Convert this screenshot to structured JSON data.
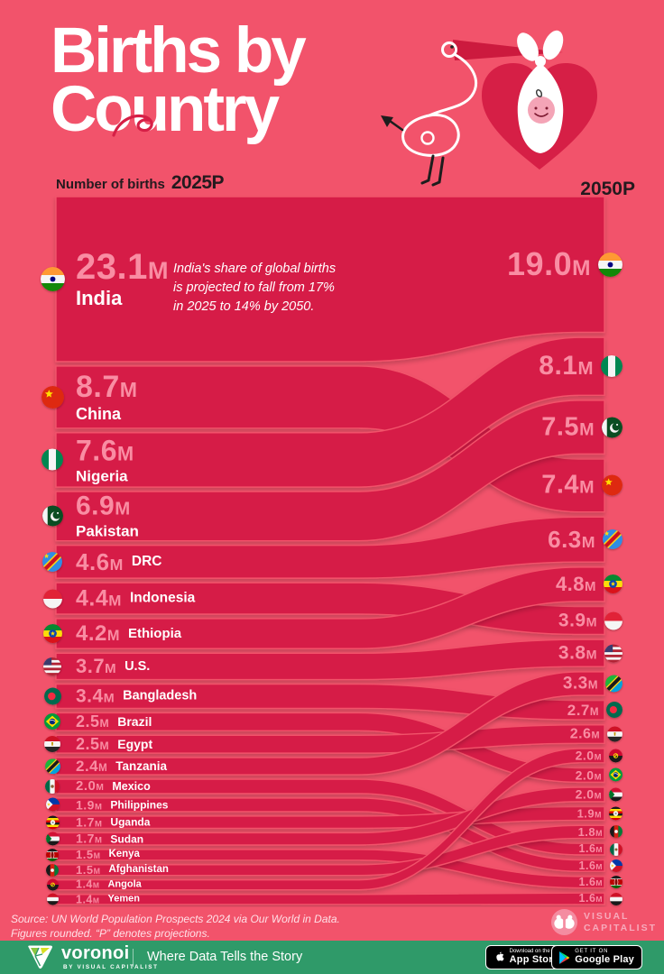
{
  "header": {
    "title_line1": "Births by",
    "title_line2": "Country"
  },
  "axis": {
    "left_label": "Number of births",
    "left_year": "2025P",
    "right_year": "2050P"
  },
  "annotation": {
    "line1": "India's share of global births",
    "line2": "is projected to fall from 17%",
    "line3": "in 2025 to 14% by 2050."
  },
  "chart_data": {
    "type": "area",
    "subtype": "sankey-alluvial",
    "title": "Births by Country",
    "unit": "millions of births",
    "columns": [
      "2025P",
      "2050P"
    ],
    "countries": [
      {
        "name": "India",
        "flag": "india",
        "births_2025": 23.1,
        "births_2050": 19.0,
        "label_2025": "23.1M",
        "label_2050": "19.0M",
        "rank_2050": 1
      },
      {
        "name": "China",
        "flag": "china",
        "births_2025": 8.7,
        "births_2050": 7.4,
        "label_2025": "8.7M",
        "label_2050": "7.4M",
        "rank_2050": 4
      },
      {
        "name": "Nigeria",
        "flag": "nigeria",
        "births_2025": 7.6,
        "births_2050": 8.1,
        "label_2025": "7.6M",
        "label_2050": "8.1M",
        "rank_2050": 2
      },
      {
        "name": "Pakistan",
        "flag": "pakistan",
        "births_2025": 6.9,
        "births_2050": 7.5,
        "label_2025": "6.9M",
        "label_2050": "7.5M",
        "rank_2050": 3
      },
      {
        "name": "DRC",
        "flag": "drc",
        "births_2025": 4.6,
        "births_2050": 6.3,
        "label_2025": "4.6M",
        "label_2050": "6.3M",
        "rank_2050": 5
      },
      {
        "name": "Indonesia",
        "flag": "indonesia",
        "births_2025": 4.4,
        "births_2050": 3.9,
        "label_2025": "4.4M",
        "label_2050": "3.9M",
        "rank_2050": 7
      },
      {
        "name": "Ethiopia",
        "flag": "ethiopia",
        "births_2025": 4.2,
        "births_2050": 4.8,
        "label_2025": "4.2M",
        "label_2050": "4.8M",
        "rank_2050": 6
      },
      {
        "name": "U.S.",
        "flag": "us",
        "births_2025": 3.7,
        "births_2050": 3.8,
        "label_2025": "3.7M",
        "label_2050": "3.8M",
        "rank_2050": 8
      },
      {
        "name": "Bangladesh",
        "flag": "bangladesh",
        "births_2025": 3.4,
        "births_2050": 2.7,
        "label_2025": "3.4M",
        "label_2050": "2.7M",
        "rank_2050": 10
      },
      {
        "name": "Brazil",
        "flag": "brazil",
        "births_2025": 2.5,
        "births_2050": 2.0,
        "label_2025": "2.5M",
        "label_2050": "2.0M",
        "rank_2050": 13
      },
      {
        "name": "Egypt",
        "flag": "egypt",
        "births_2025": 2.5,
        "births_2050": 2.6,
        "label_2025": "2.5M",
        "label_2050": "2.6M",
        "rank_2050": 11
      },
      {
        "name": "Tanzania",
        "flag": "tanzania",
        "births_2025": 2.4,
        "births_2050": 3.3,
        "label_2025": "2.4M",
        "label_2050": "3.3M",
        "rank_2050": 9
      },
      {
        "name": "Mexico",
        "flag": "mexico",
        "births_2025": 2.0,
        "births_2050": 1.6,
        "label_2025": "2.0M",
        "label_2050": "1.6M",
        "rank_2050": 17
      },
      {
        "name": "Philippines",
        "flag": "philippines",
        "births_2025": 1.9,
        "births_2050": 1.6,
        "label_2025": "1.9M",
        "label_2050": "1.6M",
        "rank_2050": 18
      },
      {
        "name": "Uganda",
        "flag": "uganda",
        "births_2025": 1.7,
        "births_2050": 1.9,
        "label_2025": "1.7M",
        "label_2050": "1.9M",
        "rank_2050": 15
      },
      {
        "name": "Sudan",
        "flag": "sudan",
        "births_2025": 1.7,
        "births_2050": 2.0,
        "label_2025": "1.7M",
        "label_2050": "2.0M",
        "rank_2050": 14
      },
      {
        "name": "Kenya",
        "flag": "kenya",
        "births_2025": 1.5,
        "births_2050": 1.6,
        "label_2025": "1.5M",
        "label_2050": "1.6M",
        "rank_2050": 19
      },
      {
        "name": "Afghanistan",
        "flag": "afghanistan",
        "births_2025": 1.5,
        "births_2050": 1.8,
        "label_2025": "1.5M",
        "label_2050": "1.8M",
        "rank_2050": 16
      },
      {
        "name": "Angola",
        "flag": "angola",
        "births_2025": 1.4,
        "births_2050": 2.0,
        "label_2025": "1.4M",
        "label_2050": "2.0M",
        "rank_2050": 12
      },
      {
        "name": "Yemen",
        "flag": "yemen",
        "births_2025": 1.4,
        "births_2050": 1.6,
        "label_2025": "1.4M",
        "label_2050": "1.6M",
        "rank_2050": 20
      }
    ]
  },
  "source": {
    "line1": "Source: UN World Population Prospects 2024 via Our World in Data.",
    "line2": "Figures rounded. “P” denotes projections."
  },
  "vc_logo": {
    "line1": "VISUAL",
    "line2": "CAPITALIST"
  },
  "footer": {
    "brand": "voronoi",
    "brand_sub": "BY VISUAL CAPITALIST",
    "tagline": "Where Data Tells the Story",
    "appstore_small": "Download on the",
    "appstore_big": "App Store",
    "gplay_small": "GET IT ON",
    "gplay_big": "Google Play"
  },
  "colors": {
    "background": "#F2536B",
    "band": "#D61F46",
    "value_text": "#F98DA3",
    "name_text": "#FFFFFF",
    "header_text": "#241A1E",
    "annotation_text": "#FFFFFF",
    "source_text": "#FFE0E7",
    "footer_bar": "#2F9A69",
    "vc_logo": "#F7AABC",
    "badge_bg": "#000000",
    "heart": "#D61F46"
  }
}
